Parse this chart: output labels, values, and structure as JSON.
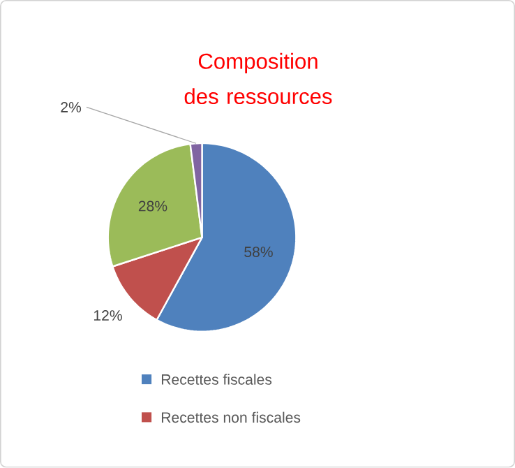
{
  "chart_data": {
    "type": "pie",
    "title": "Composition des ressources",
    "categories": [
      "Recettes fiscales",
      "Recettes non fiscales",
      null,
      null
    ],
    "values": [
      58,
      12,
      28,
      2
    ],
    "value_labels": [
      "58%",
      "12%",
      "28%",
      "2%"
    ],
    "colors": [
      "#4f81bd",
      "#c0504d",
      "#9bbb59",
      "#8064a2"
    ],
    "legend": "bottom"
  }
}
